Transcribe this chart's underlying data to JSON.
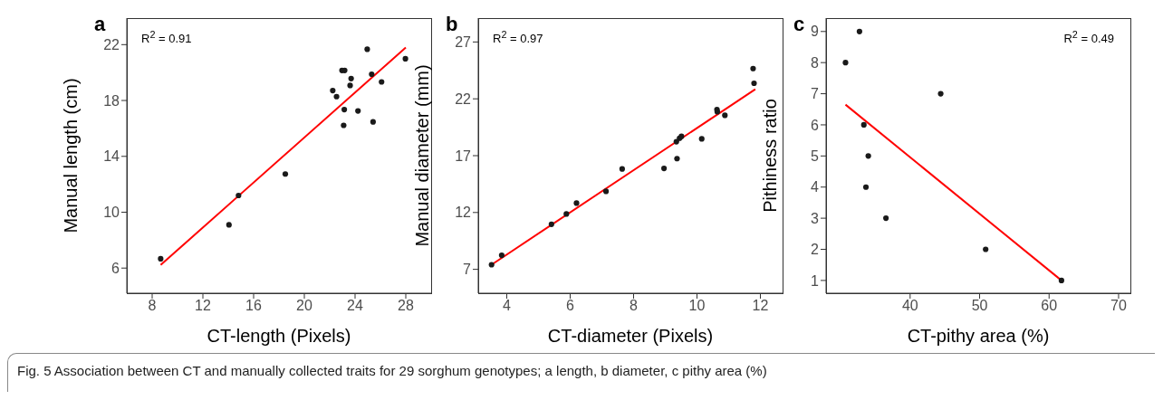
{
  "chart_data": [
    {
      "type": "scatter",
      "title": "a",
      "xlabel": "CT-length (Pixels)",
      "ylabel": "Manual length (cm)",
      "annotations": [
        "R$^{2}$ = 0.91"
      ],
      "xlim": [
        6,
        30
      ],
      "xticks": [
        8,
        12,
        16,
        20,
        24,
        28
      ],
      "ylim": [
        4.2,
        23.9
      ],
      "yticks": [
        6,
        10,
        14,
        18,
        22
      ],
      "series": [
        {
          "marker": "circle",
          "color": "#1a1a1a",
          "x": [
            8.67,
            14.06,
            14.81,
            18.5,
            22.24,
            22.54,
            22.97,
            23.18,
            23.69,
            23.61,
            23.15,
            23.1,
            24.23,
            24.96,
            25.31,
            25.42,
            26.09,
            27.97
          ],
          "values": [
            6.67,
            9.1,
            11.2,
            12.74,
            18.71,
            18.28,
            20.15,
            20.15,
            19.57,
            19.08,
            17.35,
            16.22,
            17.25,
            21.67,
            19.88,
            16.47,
            19.33,
            20.99
          ]
        },
        {
          "type": "line",
          "marker": "none",
          "color": "#ff0000",
          "x": [
            8.67,
            28.0
          ],
          "values": [
            6.22,
            21.8
          ]
        }
      ]
    },
    {
      "type": "scatter",
      "title": "b",
      "xlabel": "CT-diameter (Pixels)",
      "ylabel": "Manual diameter (mm)",
      "annotations": [
        "R$^{2}$ = 0.97"
      ],
      "xlim": [
        3.1,
        12.7
      ],
      "xticks": [
        4,
        6,
        8,
        10,
        12
      ],
      "ylim": [
        4.9,
        29.1
      ],
      "yticks": [
        7,
        12,
        17,
        22,
        27
      ],
      "series": [
        {
          "marker": "circle",
          "color": "#1a1a1a",
          "x": [
            3.52,
            3.84,
            5.41,
            5.88,
            6.2,
            7.13,
            7.64,
            8.96,
            9.37,
            9.35,
            9.45,
            9.51,
            10.15,
            10.63,
            10.64,
            10.88,
            11.77,
            11.8
          ],
          "values": [
            7.41,
            8.24,
            10.96,
            11.87,
            12.83,
            13.86,
            15.83,
            15.88,
            16.74,
            18.23,
            18.53,
            18.7,
            18.48,
            21.05,
            20.87,
            20.55,
            24.66,
            23.37
          ]
        },
        {
          "type": "line",
          "marker": "none",
          "color": "#ff0000",
          "x": [
            3.52,
            11.84
          ],
          "values": [
            7.41,
            22.84
          ]
        }
      ]
    },
    {
      "type": "scatter",
      "title": "c",
      "xlabel": "CT-pithy area (%)",
      "ylabel": "Pithiness ratio",
      "annotations": [
        "R$^{2}$ = 0.49",
        "Fig. 5  Association between CT and manually collected traits for 29 sorghum genotypes; a length, b diameter, c pithy area (%)"
      ],
      "xlim": [
        27.9,
        71.7
      ],
      "xticks": [
        40,
        50,
        60,
        70
      ],
      "ylim": [
        0.59,
        9.43
      ],
      "yticks": [
        1,
        2,
        3,
        4,
        5,
        6,
        7,
        8,
        9
      ],
      "series": [
        {
          "marker": "circle",
          "color": "#1a1a1a",
          "x": [
            30.7,
            32.71,
            33.34,
            33.98,
            33.64,
            36.52,
            44.4,
            50.87,
            61.78
          ],
          "values": [
            8,
            9,
            6,
            5,
            4,
            3,
            7,
            2,
            1
          ]
        },
        {
          "type": "line",
          "marker": "none",
          "color": "#ff0000",
          "x": [
            30.7,
            61.78
          ],
          "values": [
            6.65,
            1.0
          ]
        }
      ]
    }
  ]
}
